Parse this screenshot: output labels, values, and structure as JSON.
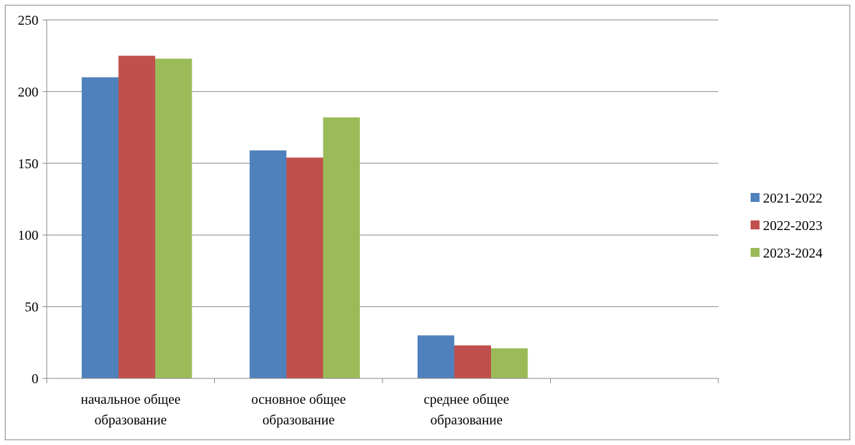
{
  "chart_data": {
    "type": "bar",
    "title": "",
    "xlabel": "",
    "ylabel": "",
    "categories": [
      [
        "начальное общее",
        "образование"
      ],
      [
        "основное общее",
        "образование"
      ],
      [
        "среднее общее",
        "образование"
      ],
      [
        "",
        ""
      ]
    ],
    "series": [
      {
        "name": "2021-2022",
        "color": "#4F81BD",
        "values": [
          210,
          159,
          30,
          null
        ]
      },
      {
        "name": "2022-2023",
        "color": "#C0504D",
        "values": [
          225,
          154,
          23,
          null
        ]
      },
      {
        "name": "2023-2024",
        "color": "#9BBB59",
        "values": [
          223,
          182,
          21,
          null
        ]
      }
    ],
    "ylim": [
      0,
      250
    ],
    "yticks": [
      0,
      50,
      100,
      150,
      200,
      250
    ],
    "grid": true,
    "legend": "right"
  }
}
